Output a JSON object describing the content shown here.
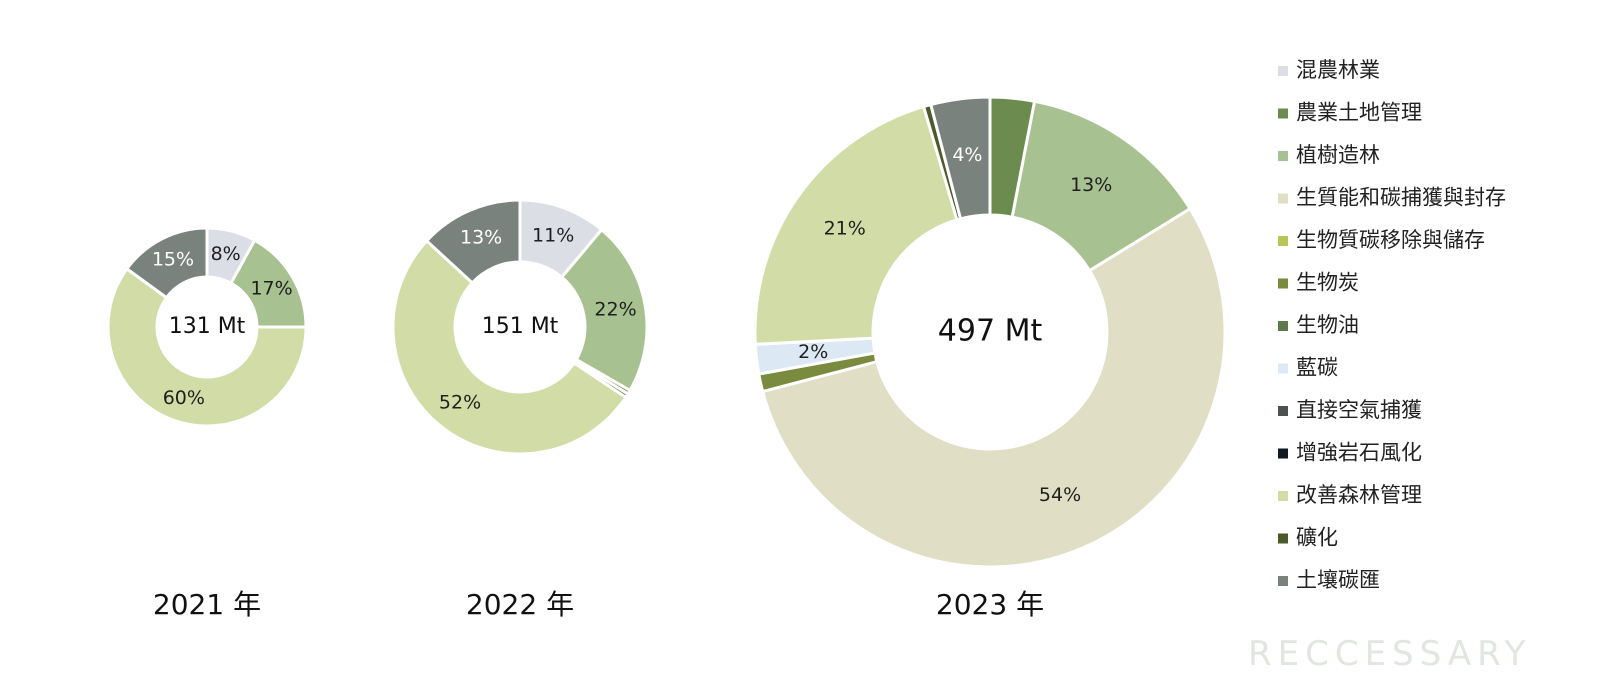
{
  "chart_data": [
    {
      "type": "pie",
      "center_label": "131 Mt",
      "year_label": "2021 年",
      "slices": [
        {
          "category": "混農林業",
          "value": 8,
          "label": "8%"
        },
        {
          "category": "植樹造林",
          "value": 17,
          "label": "17%"
        },
        {
          "category": "改善森林管理",
          "value": 60,
          "label": "60%"
        },
        {
          "category": "土壤碳匯",
          "value": 15,
          "label": "15%"
        }
      ]
    },
    {
      "type": "pie",
      "center_label": "151 Mt",
      "year_label": "2022 年",
      "slices": [
        {
          "category": "混農林業",
          "value": 11,
          "label": "11%"
        },
        {
          "category": "植樹造林",
          "value": 22,
          "label": "22%"
        },
        {
          "category": "生物炭",
          "value": 0.5,
          "label": ""
        },
        {
          "category": "生物油",
          "value": 0.5,
          "label": ""
        },
        {
          "category": "改善森林管理",
          "value": 52,
          "label": "52%"
        },
        {
          "category": "土壤碳匯",
          "value": 13,
          "label": "13%"
        }
      ]
    },
    {
      "type": "pie",
      "center_label": "497 Mt",
      "year_label": "2023 年",
      "slices": [
        {
          "category": "農業土地管理",
          "value": 3,
          "label": ""
        },
        {
          "category": "植樹造林",
          "value": 13,
          "label": "13%"
        },
        {
          "category": "生質能和碳捕獲與封存",
          "value": 54,
          "label": "54%"
        },
        {
          "category": "生物炭",
          "value": 1.2,
          "label": ""
        },
        {
          "category": "藍碳",
          "value": 2,
          "label": "2%"
        },
        {
          "category": "改善森林管理",
          "value": 21,
          "label": "21%"
        },
        {
          "category": "礦化",
          "value": 0.5,
          "label": ""
        },
        {
          "category": "土壤碳匯",
          "value": 4,
          "label": "4%"
        }
      ]
    }
  ],
  "legend": [
    {
      "label": "混農林業",
      "color": "#dcdee6"
    },
    {
      "label": "農業土地管理",
      "color": "#6b8c4e"
    },
    {
      "label": "植樹造林",
      "color": "#a7c190"
    },
    {
      "label": "生質能和碳捕獲與封存",
      "color": "#e0dec4"
    },
    {
      "label": "生物質碳移除與儲存",
      "color": "#b7c55a"
    },
    {
      "label": "生物炭",
      "color": "#7a8a3e"
    },
    {
      "label": "生物油",
      "color": "#5e7a48"
    },
    {
      "label": "藍碳",
      "color": "#dce9f4"
    },
    {
      "label": "直接空氣捕獲",
      "color": "#4b5250"
    },
    {
      "label": "增強岩石風化",
      "color": "#101820"
    },
    {
      "label": "改善森林管理",
      "color": "#d2dca6"
    },
    {
      "label": "礦化",
      "color": "#4c5a2a"
    },
    {
      "label": "土壤碳匯",
      "color": "#7a827e"
    }
  ],
  "brand": "RECCESSARY"
}
